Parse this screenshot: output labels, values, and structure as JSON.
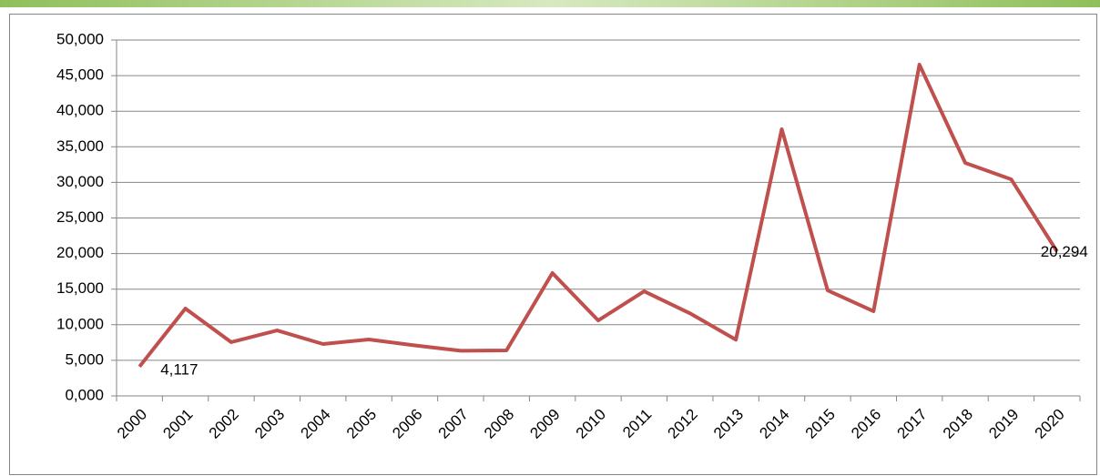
{
  "chart_data": {
    "type": "line",
    "categories": [
      "2000",
      "2001",
      "2002",
      "2003",
      "2004",
      "2005",
      "2006",
      "2007",
      "2008",
      "2009",
      "2010",
      "2011",
      "2012",
      "2013",
      "2014",
      "2015",
      "2016",
      "2017",
      "2018",
      "2019",
      "2020"
    ],
    "series": [
      {
        "color": "#c0504d",
        "values": [
          4117,
          12280,
          7550,
          9200,
          7290,
          7930,
          7100,
          6350,
          6400,
          17260,
          10600,
          14700,
          11600,
          7900,
          37470,
          14830,
          11900,
          46550,
          32740,
          30440,
          20294
        ],
        "value_labels": [
          "4,117",
          null,
          null,
          null,
          null,
          null,
          null,
          null,
          null,
          null,
          null,
          null,
          null,
          null,
          null,
          null,
          null,
          null,
          null,
          null,
          "20,294"
        ]
      }
    ],
    "ylim": [
      0,
      50000
    ],
    "yticks": [
      {
        "value": 0,
        "label": "0,000"
      },
      {
        "value": 5000,
        "label": "5,000"
      },
      {
        "value": 10000,
        "label": "10,000"
      },
      {
        "value": 15000,
        "label": "15,000"
      },
      {
        "value": 20000,
        "label": "20,000"
      },
      {
        "value": 25000,
        "label": "25,000"
      },
      {
        "value": 30000,
        "label": "30,000"
      },
      {
        "value": 35000,
        "label": "35,000"
      },
      {
        "value": 40000,
        "label": "40,000"
      },
      {
        "value": 45000,
        "label": "45,000"
      },
      {
        "value": 50000,
        "label": "50,000"
      }
    ],
    "grid": true
  }
}
